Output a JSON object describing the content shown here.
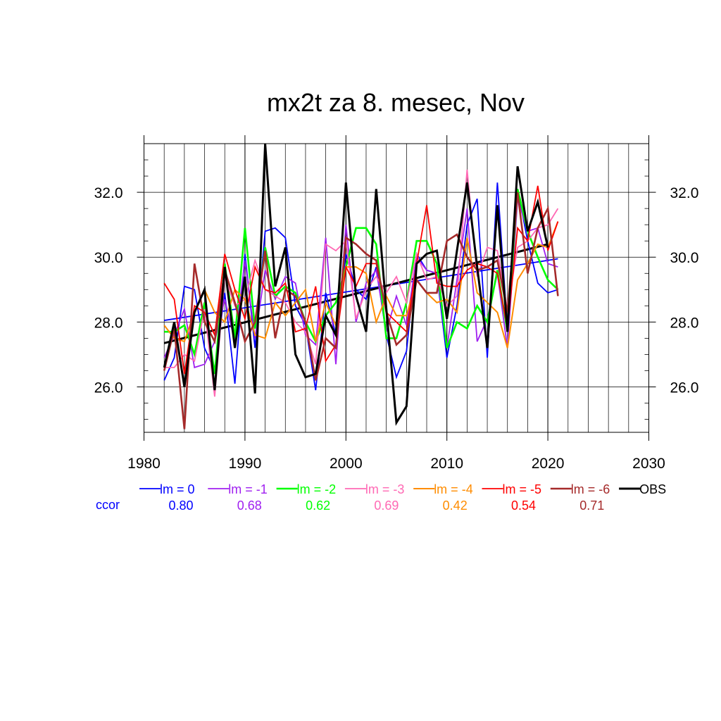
{
  "chart_data": {
    "type": "line",
    "title": "mx2t za 8. mesec, Nov",
    "xlabel": "",
    "ylabel": "",
    "xlim": [
      1980,
      2030
    ],
    "ylim": [
      24.6,
      33.5
    ],
    "x_ticks": [
      1980,
      1990,
      2000,
      2010,
      2020,
      2030
    ],
    "x_tick_labels": [
      "1980",
      "1990",
      "2000",
      "2010",
      "2020",
      "2030"
    ],
    "y_ticks": [
      26.0,
      28.0,
      30.0,
      32.0
    ],
    "y_tick_labels": [
      "26.0",
      "28.0",
      "30.0",
      "32.0"
    ],
    "grid": true,
    "legend_position": "bottom",
    "ccor_label": "ccor",
    "x": [
      1982,
      1983,
      1984,
      1985,
      1986,
      1987,
      1988,
      1989,
      1990,
      1991,
      1992,
      1993,
      1994,
      1995,
      1996,
      1997,
      1998,
      1999,
      2000,
      2001,
      2002,
      2003,
      2004,
      2005,
      2006,
      2007,
      2008,
      2009,
      2010,
      2011,
      2012,
      2013,
      2014,
      2015,
      2016,
      2017,
      2018,
      2019,
      2020,
      2021
    ],
    "series": [
      {
        "name": "lm = 0",
        "ccor": "0.80",
        "color": "#0000ff",
        "width": 1.8,
        "values": [
          26.2,
          26.9,
          29.1,
          29.0,
          27.2,
          26.5,
          28.9,
          26.1,
          30.1,
          27.2,
          30.8,
          30.9,
          30.6,
          28.5,
          27.9,
          25.9,
          28.9,
          27.6,
          30.1,
          29.0,
          28.7,
          29.7,
          27.6,
          26.3,
          27.1,
          30.1,
          29.6,
          29.5,
          26.9,
          28.5,
          31.0,
          31.8,
          26.9,
          32.3,
          27.8,
          32.1,
          30.5,
          29.2,
          28.9,
          29.0
        ]
      },
      {
        "name": "lm = -1",
        "ccor": "0.68",
        "color": "#a020f0",
        "width": 1.8,
        "values": [
          26.9,
          27.6,
          28.4,
          26.6,
          26.7,
          27.4,
          28.7,
          27.4,
          29.9,
          27.5,
          29.6,
          28.7,
          29.4,
          29.2,
          27.6,
          27.3,
          30.6,
          26.7,
          31.0,
          28.0,
          29.2,
          29.6,
          27.7,
          28.8,
          27.9,
          30.0,
          29.6,
          29.5,
          27.2,
          29.3,
          31.5,
          27.4,
          28.1,
          29.5,
          27.2,
          31.8,
          30.8,
          30.9,
          29.8,
          29.7
        ]
      },
      {
        "name": "lm = -2",
        "ccor": "0.62",
        "color": "#00ff00",
        "width": 2.6,
        "values": [
          27.7,
          27.7,
          27.9,
          27.0,
          28.6,
          26.4,
          29.8,
          27.5,
          30.9,
          27.8,
          30.3,
          28.8,
          29.1,
          28.9,
          28.0,
          27.4,
          28.2,
          28.6,
          29.7,
          30.9,
          30.9,
          30.4,
          27.5,
          27.5,
          28.6,
          30.5,
          30.5,
          29.8,
          27.2,
          28.0,
          27.8,
          28.5,
          28.0,
          29.6,
          27.7,
          32.1,
          30.8,
          30.0,
          29.3,
          29.0
        ]
      },
      {
        "name": "lm = -3",
        "ccor": "0.69",
        "color": "#ff69b4",
        "width": 1.8,
        "values": [
          26.6,
          26.6,
          27.0,
          26.8,
          28.4,
          25.7,
          29.4,
          28.5,
          28.7,
          29.9,
          29.0,
          28.8,
          28.6,
          28.0,
          27.7,
          26.7,
          30.4,
          30.2,
          30.5,
          28.1,
          29.0,
          29.4,
          28.9,
          29.4,
          28.6,
          30.1,
          29.3,
          29.4,
          28.5,
          28.8,
          32.7,
          29.4,
          30.3,
          30.2,
          28.4,
          30.3,
          30.5,
          30.9,
          31.0,
          31.5
        ]
      },
      {
        "name": "lm = -4",
        "ccor": "0.42",
        "color": "#ff8c00",
        "width": 2.0,
        "values": [
          27.9,
          27.5,
          27.4,
          28.3,
          29.0,
          28.3,
          28.0,
          29.0,
          28.7,
          27.6,
          27.5,
          28.6,
          28.2,
          28.6,
          29.0,
          27.4,
          28.6,
          27.9,
          29.7,
          29.7,
          29.5,
          28.0,
          28.8,
          28.2,
          28.2,
          29.3,
          28.9,
          28.6,
          28.7,
          28.3,
          30.6,
          28.9,
          28.6,
          28.3,
          27.2,
          29.3,
          29.8,
          30.4,
          30.3,
          31.1
        ]
      },
      {
        "name": "lm = -5",
        "ccor": "0.54",
        "color": "#ff0000",
        "width": 1.8,
        "values": [
          29.2,
          28.7,
          26.4,
          28.5,
          28.3,
          27.6,
          30.1,
          29.0,
          28.1,
          29.7,
          29.0,
          28.9,
          29.2,
          27.7,
          27.8,
          29.1,
          26.8,
          27.3,
          29.7,
          29.1,
          29.8,
          29.8,
          28.3,
          28.0,
          27.7,
          29.8,
          31.6,
          29.2,
          29.1,
          29.1,
          29.6,
          29.8,
          29.7,
          29.5,
          27.8,
          30.9,
          30.5,
          32.2,
          30.2,
          31.1
        ]
      },
      {
        "name": "lm = -6",
        "ccor": "0.71",
        "color": "#a52a2a",
        "width": 2.6,
        "values": [
          26.5,
          27.8,
          24.7,
          29.8,
          28.0,
          27.4,
          29.6,
          28.6,
          27.4,
          28.0,
          30.2,
          27.5,
          29.0,
          28.8,
          28.0,
          26.2,
          27.5,
          27.2,
          30.6,
          30.4,
          30.1,
          29.9,
          28.3,
          27.3,
          27.6,
          29.3,
          28.9,
          28.9,
          30.5,
          30.7,
          30.0,
          29.6,
          29.7,
          29.9,
          28.3,
          32.0,
          29.5,
          30.9,
          31.5,
          28.8
        ]
      },
      {
        "name": "OBS",
        "ccor": "",
        "color": "#000000",
        "width": 3.0,
        "values": [
          26.6,
          28.0,
          26.0,
          28.3,
          29.0,
          25.9,
          29.7,
          27.2,
          29.4,
          25.8,
          33.5,
          29.1,
          30.3,
          27.0,
          26.3,
          26.4,
          28.2,
          27.6,
          32.3,
          28.8,
          27.7,
          32.1,
          28.4,
          24.9,
          25.4,
          29.8,
          30.1,
          30.2,
          28.1,
          30.2,
          32.3,
          29.7,
          27.2,
          31.6,
          27.7,
          32.8,
          30.8,
          31.7,
          30.3,
          null
        ]
      }
    ],
    "trend_lines": [
      {
        "series": "lm = 0",
        "color": "#0000ff",
        "width": 1.8,
        "x": [
          1982,
          2021
        ],
        "y": [
          28.05,
          29.95
        ]
      },
      {
        "series": "OBS",
        "color": "#000000",
        "width": 3.0,
        "x": [
          1982,
          2020
        ],
        "y": [
          27.35,
          30.4
        ]
      }
    ]
  }
}
